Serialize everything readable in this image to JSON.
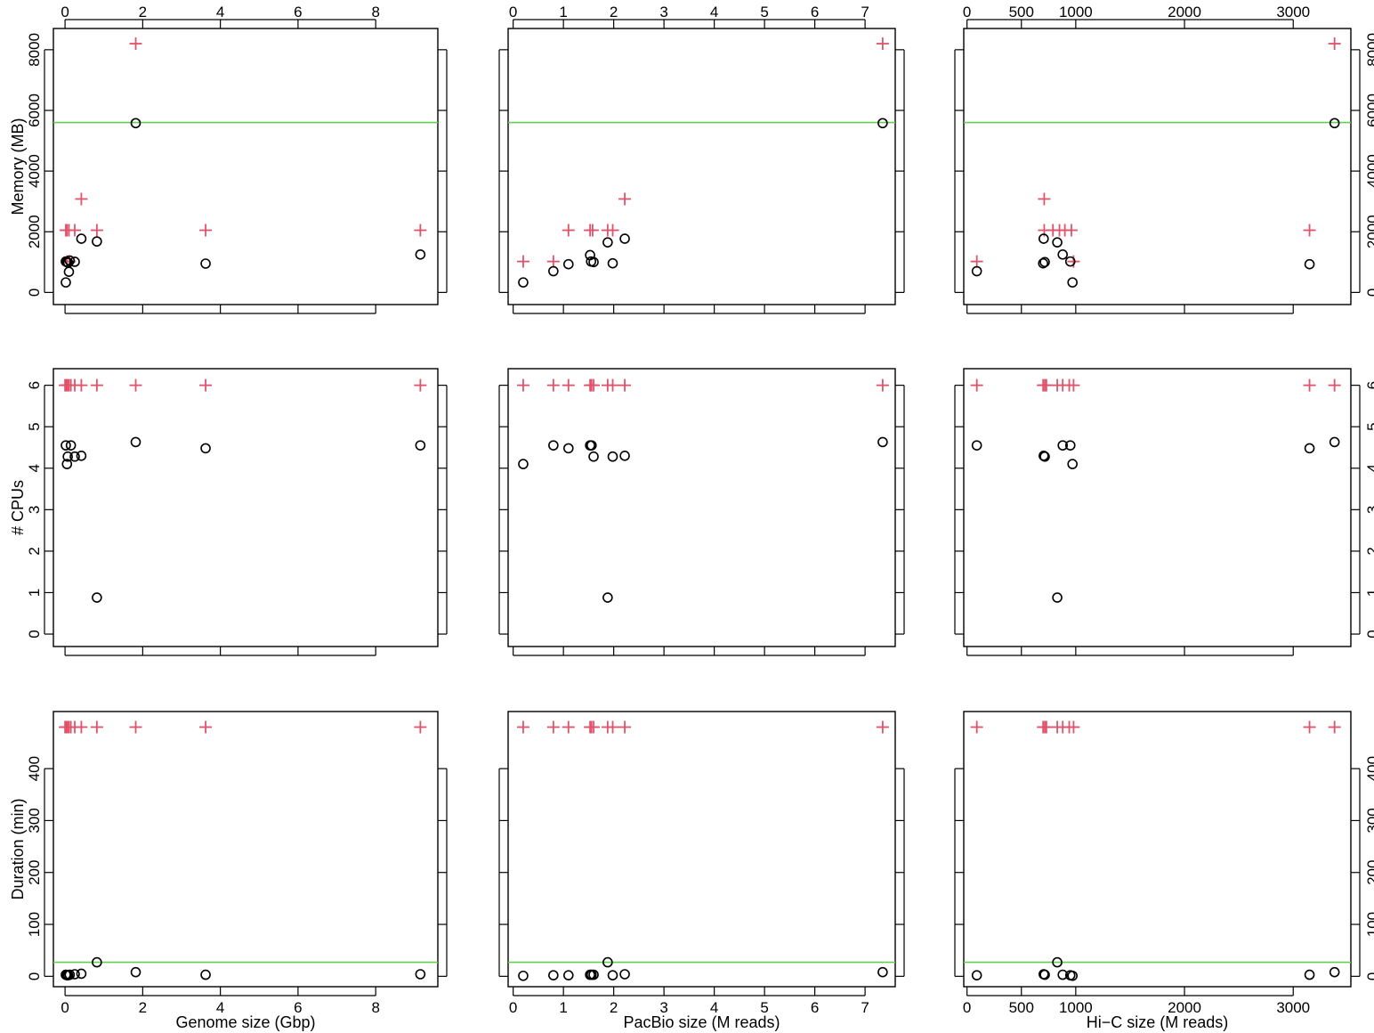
{
  "colors": {
    "limit": "#df536b",
    "observed": "#000000",
    "reference": "#61d04f"
  },
  "chart_data": {
    "type": "scatter",
    "columns": [
      {
        "xlabel": "Genome size (Gbp)",
        "xlim": [
          -0.3,
          9.6
        ],
        "xticks": [
          0,
          2,
          4,
          6,
          8
        ]
      },
      {
        "xlabel": "PacBio size (M reads)",
        "xlim": [
          -0.1,
          7.6
        ],
        "xticks": [
          0,
          1,
          2,
          3,
          4,
          5,
          6,
          7
        ]
      },
      {
        "xlabel": "Hi−C size (M reads)",
        "xlim": [
          -30,
          3530
        ],
        "xticks": [
          0,
          500,
          1000,
          2000,
          3000
        ]
      }
    ],
    "rows": [
      {
        "ylabel": "Memory (MB)",
        "ylim": [
          -400,
          8700
        ],
        "yticks": [
          0,
          2000,
          4000,
          6000,
          8000
        ],
        "reference_line": 5600
      },
      {
        "ylabel": "# CPUs",
        "ylim": [
          -0.3,
          6.4
        ],
        "yticks": [
          0,
          1,
          2,
          3,
          4,
          5,
          6
        ],
        "reference_line": null
      },
      {
        "ylabel": "Duration (min)",
        "ylim": [
          -20,
          510
        ],
        "yticks": [
          0,
          100,
          200,
          300,
          400
        ],
        "reference_line": 27
      }
    ],
    "panels": [
      {
        "row": 0,
        "col": 0,
        "observed": [
          [
            0.02,
            1020
          ],
          [
            0.05,
            1000
          ],
          [
            0.08,
            980
          ],
          [
            0.12,
            1050
          ],
          [
            0.02,
            330
          ],
          [
            0.1,
            680
          ],
          [
            0.25,
            1010
          ],
          [
            0.42,
            1770
          ],
          [
            0.82,
            1680
          ],
          [
            1.82,
            5580
          ],
          [
            3.62,
            950
          ],
          [
            9.15,
            1250
          ]
        ],
        "limit": [
          [
            0.02,
            2050
          ],
          [
            0.05,
            2050
          ],
          [
            0.1,
            2050
          ],
          [
            0.25,
            2050
          ],
          [
            0.05,
            1020
          ],
          [
            0.12,
            1020
          ],
          [
            0.42,
            3080
          ],
          [
            0.82,
            2050
          ],
          [
            1.82,
            8200
          ],
          [
            3.62,
            2050
          ],
          [
            9.15,
            2050
          ]
        ]
      },
      {
        "row": 0,
        "col": 1,
        "observed": [
          [
            0.2,
            330
          ],
          [
            0.8,
            700
          ],
          [
            1.1,
            930
          ],
          [
            1.53,
            1230
          ],
          [
            1.55,
            1020
          ],
          [
            1.6,
            1000
          ],
          [
            1.88,
            1650
          ],
          [
            1.98,
            960
          ],
          [
            2.22,
            1770
          ],
          [
            7.35,
            5580
          ]
        ],
        "limit": [
          [
            0.2,
            1020
          ],
          [
            0.8,
            1020
          ],
          [
            1.1,
            2050
          ],
          [
            1.53,
            2050
          ],
          [
            1.58,
            2050
          ],
          [
            1.88,
            2050
          ],
          [
            1.98,
            2050
          ],
          [
            2.22,
            3080
          ],
          [
            7.35,
            8200
          ]
        ]
      },
      {
        "row": 0,
        "col": 2,
        "observed": [
          [
            90,
            700
          ],
          [
            700,
            960
          ],
          [
            715,
            1000
          ],
          [
            705,
            1770
          ],
          [
            830,
            1650
          ],
          [
            880,
            1250
          ],
          [
            950,
            1020
          ],
          [
            970,
            330
          ],
          [
            3150,
            930
          ],
          [
            3380,
            5580
          ]
        ],
        "limit": [
          [
            90,
            1020
          ],
          [
            710,
            3080
          ],
          [
            710,
            2050
          ],
          [
            790,
            2050
          ],
          [
            850,
            2050
          ],
          [
            900,
            2050
          ],
          [
            960,
            2050
          ],
          [
            980,
            1020
          ],
          [
            3150,
            2050
          ],
          [
            3380,
            8200
          ]
        ]
      },
      {
        "row": 1,
        "col": 0,
        "observed": [
          [
            0.02,
            4.55
          ],
          [
            0.05,
            4.1
          ],
          [
            0.07,
            4.28
          ],
          [
            0.15,
            4.55
          ],
          [
            0.25,
            4.28
          ],
          [
            0.42,
            4.3
          ],
          [
            0.82,
            0.88
          ],
          [
            1.82,
            4.63
          ],
          [
            3.62,
            4.48
          ],
          [
            9.15,
            4.55
          ]
        ],
        "limit": [
          [
            0.0,
            6
          ],
          [
            0.03,
            6
          ],
          [
            0.06,
            6
          ],
          [
            0.1,
            6
          ],
          [
            0.15,
            6
          ],
          [
            0.25,
            6
          ],
          [
            0.42,
            6
          ],
          [
            0.82,
            6
          ],
          [
            1.82,
            6
          ],
          [
            3.62,
            6
          ],
          [
            9.15,
            6
          ]
        ]
      },
      {
        "row": 1,
        "col": 1,
        "observed": [
          [
            0.2,
            4.1
          ],
          [
            0.8,
            4.55
          ],
          [
            1.1,
            4.48
          ],
          [
            1.53,
            4.55
          ],
          [
            1.56,
            4.55
          ],
          [
            1.6,
            4.28
          ],
          [
            1.88,
            0.88
          ],
          [
            1.98,
            4.28
          ],
          [
            2.22,
            4.3
          ],
          [
            7.35,
            4.63
          ]
        ],
        "limit": [
          [
            0.2,
            6
          ],
          [
            0.8,
            6
          ],
          [
            1.1,
            6
          ],
          [
            1.53,
            6
          ],
          [
            1.56,
            6
          ],
          [
            1.6,
            6
          ],
          [
            1.88,
            6
          ],
          [
            1.98,
            6
          ],
          [
            2.22,
            6
          ],
          [
            7.35,
            6
          ]
        ]
      },
      {
        "row": 1,
        "col": 2,
        "observed": [
          [
            90,
            4.55
          ],
          [
            705,
            4.3
          ],
          [
            715,
            4.28
          ],
          [
            830,
            0.88
          ],
          [
            880,
            4.55
          ],
          [
            950,
            4.55
          ],
          [
            970,
            4.1
          ],
          [
            3150,
            4.48
          ],
          [
            3380,
            4.63
          ]
        ],
        "limit": [
          [
            90,
            6
          ],
          [
            700,
            6
          ],
          [
            715,
            6
          ],
          [
            730,
            6
          ],
          [
            830,
            6
          ],
          [
            880,
            6
          ],
          [
            940,
            6
          ],
          [
            980,
            6
          ],
          [
            3150,
            6
          ],
          [
            3380,
            6
          ]
        ]
      },
      {
        "row": 2,
        "col": 0,
        "observed": [
          [
            0.02,
            3
          ],
          [
            0.05,
            2
          ],
          [
            0.08,
            2
          ],
          [
            0.12,
            3
          ],
          [
            0.25,
            4
          ],
          [
            0.42,
            5
          ],
          [
            0.82,
            27
          ],
          [
            1.82,
            8
          ],
          [
            3.62,
            3
          ],
          [
            9.15,
            4
          ]
        ],
        "limit": [
          [
            0.0,
            480
          ],
          [
            0.03,
            480
          ],
          [
            0.06,
            480
          ],
          [
            0.1,
            480
          ],
          [
            0.15,
            480
          ],
          [
            0.25,
            480
          ],
          [
            0.42,
            480
          ],
          [
            0.82,
            480
          ],
          [
            1.82,
            480
          ],
          [
            3.62,
            480
          ],
          [
            9.15,
            480
          ]
        ]
      },
      {
        "row": 2,
        "col": 1,
        "observed": [
          [
            0.2,
            1
          ],
          [
            0.8,
            2
          ],
          [
            1.1,
            2
          ],
          [
            1.53,
            3
          ],
          [
            1.56,
            3
          ],
          [
            1.6,
            3
          ],
          [
            1.88,
            27
          ],
          [
            1.98,
            2
          ],
          [
            2.22,
            4
          ],
          [
            7.35,
            8
          ]
        ],
        "limit": [
          [
            0.2,
            480
          ],
          [
            0.8,
            480
          ],
          [
            1.1,
            480
          ],
          [
            1.53,
            480
          ],
          [
            1.56,
            480
          ],
          [
            1.6,
            480
          ],
          [
            1.88,
            480
          ],
          [
            1.98,
            480
          ],
          [
            2.22,
            480
          ],
          [
            7.35,
            480
          ]
        ]
      },
      {
        "row": 2,
        "col": 2,
        "observed": [
          [
            90,
            2
          ],
          [
            705,
            4
          ],
          [
            715,
            3
          ],
          [
            830,
            27
          ],
          [
            880,
            3
          ],
          [
            950,
            2
          ],
          [
            970,
            1
          ],
          [
            3150,
            3
          ],
          [
            3380,
            8
          ]
        ],
        "limit": [
          [
            90,
            480
          ],
          [
            700,
            480
          ],
          [
            715,
            480
          ],
          [
            730,
            480
          ],
          [
            830,
            480
          ],
          [
            880,
            480
          ],
          [
            940,
            480
          ],
          [
            980,
            480
          ],
          [
            3150,
            480
          ],
          [
            3380,
            480
          ]
        ]
      }
    ]
  }
}
